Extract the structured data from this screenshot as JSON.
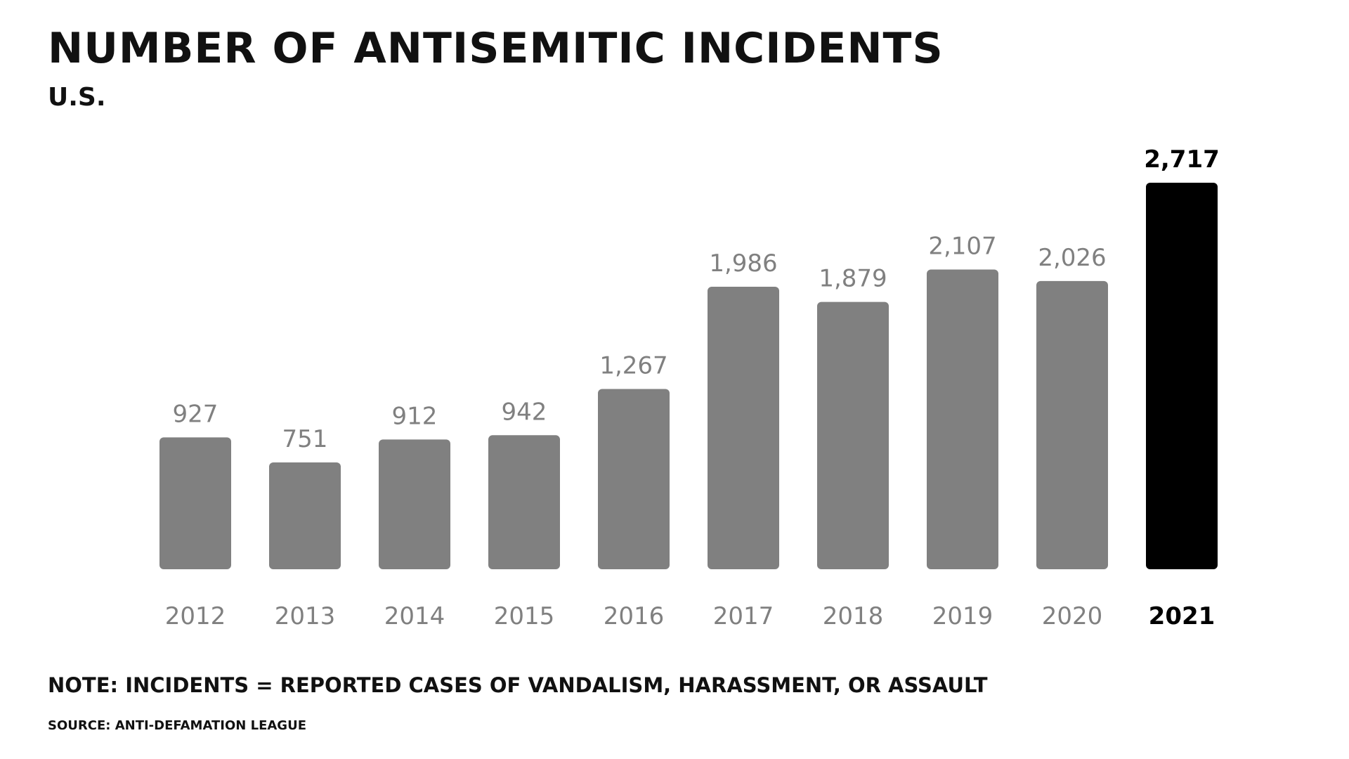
{
  "title": "Number of antisemitic incidents",
  "subtitle": "U.S.",
  "note": "Note: Incidents = reported cases of vandalism, harassment, or assault",
  "source": "Source: Anti-Defamation League",
  "colors": {
    "bar": "#808080",
    "highlight": "#000000",
    "label": "#808080",
    "highlight_label": "#000000"
  },
  "chart_data": {
    "type": "bar",
    "categories": [
      "2012",
      "2013",
      "2014",
      "2015",
      "2016",
      "2017",
      "2018",
      "2019",
      "2020",
      "2021"
    ],
    "values": [
      927,
      751,
      912,
      942,
      1267,
      1986,
      1879,
      2107,
      2026,
      2717
    ],
    "value_labels": [
      "927",
      "751",
      "912",
      "942",
      "1,267",
      "1,986",
      "1,879",
      "2,107",
      "2,026",
      "2,717"
    ],
    "highlight_category": "2021",
    "title": "Number of antisemitic incidents",
    "subtitle": "U.S.",
    "xlabel": "",
    "ylabel": "",
    "ylim": [
      0,
      2717
    ],
    "grid": false,
    "legend": "none"
  }
}
